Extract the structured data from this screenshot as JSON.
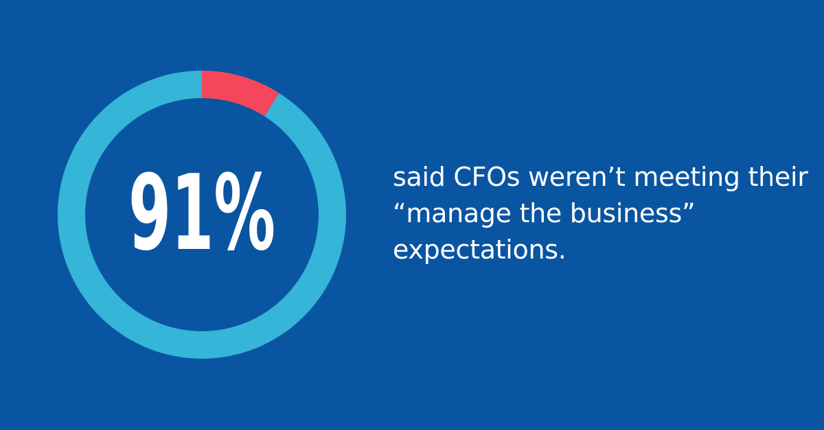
{
  "chart_data": {
    "type": "pie",
    "style": "donut",
    "center_label": "91%",
    "slices": [
      {
        "value": 91,
        "color": "#35b5d8"
      },
      {
        "value": 9,
        "color": "#f5475c"
      }
    ]
  },
  "caption": {
    "lines": [
      "said CFOs weren’t meeting their",
      "“manage the business”",
      "expectations."
    ]
  },
  "colors": {
    "background": "#0a55a1",
    "ring": "#35b5d8",
    "highlight": "#f5475c",
    "text": "#ffffff"
  }
}
